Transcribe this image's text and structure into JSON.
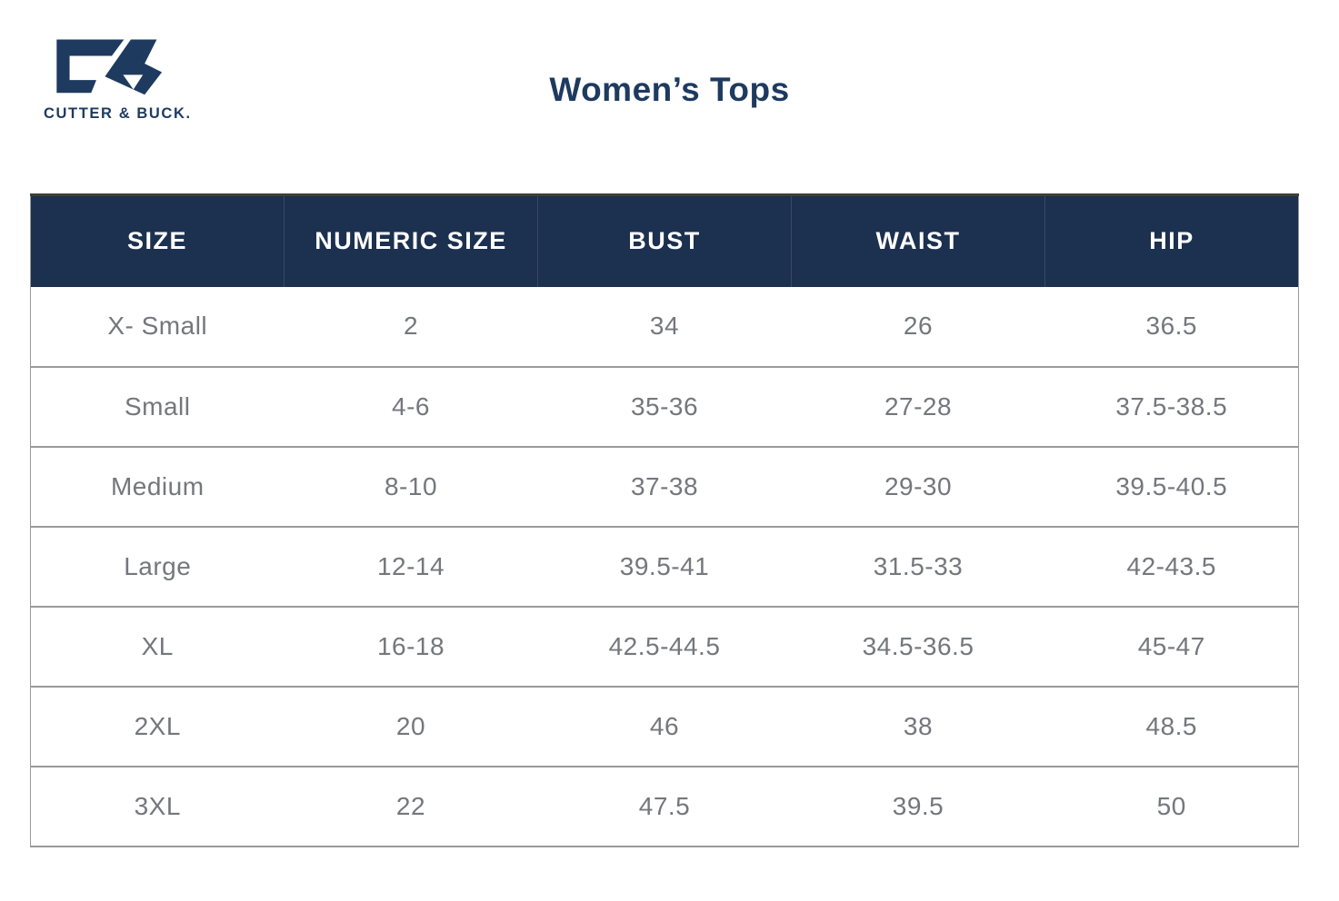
{
  "brand": {
    "logo_text": "CUTTER & BUCK.",
    "logo_mark": "cb-monogram"
  },
  "page": {
    "title": "Women’s Tops"
  },
  "table": {
    "columns": [
      "SIZE",
      "NUMERIC SIZE",
      "BUST",
      "WAIST",
      "HIP"
    ],
    "rows": [
      [
        "X- Small",
        "2",
        "34",
        "26",
        "36.5"
      ],
      [
        "Small",
        "4-6",
        "35-36",
        "27-28",
        "37.5-38.5"
      ],
      [
        "Medium",
        "8-10",
        "37-38",
        "29-30",
        "39.5-40.5"
      ],
      [
        "Large",
        "12-14",
        "39.5-41",
        "31.5-33",
        "42-43.5"
      ],
      [
        "XL",
        "16-18",
        "42.5-44.5",
        "34.5-36.5",
        "45-47"
      ],
      [
        "2XL",
        "20",
        "46",
        "38",
        "48.5"
      ],
      [
        "3XL",
        "22",
        "47.5",
        "39.5",
        "50"
      ]
    ]
  },
  "colors": {
    "navy_header": "#1c304f",
    "navy_brand": "#1e3a5f",
    "body_text": "#74777b",
    "divider": "#9a9a9a"
  }
}
